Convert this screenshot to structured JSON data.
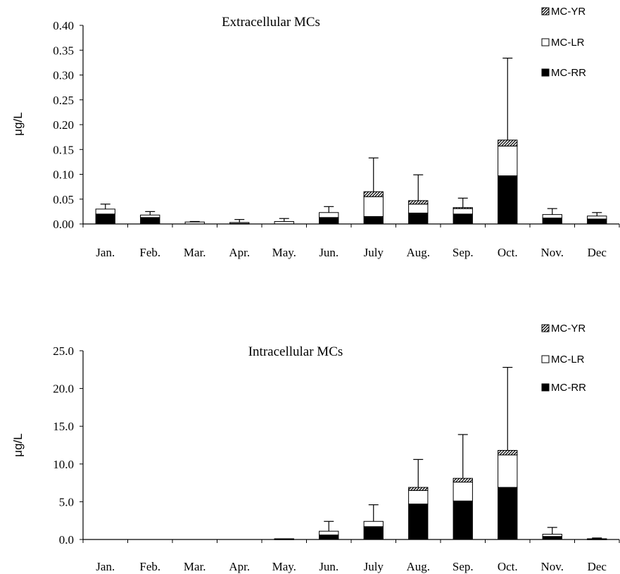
{
  "chart_data": [
    {
      "type": "bar",
      "stacked": true,
      "title": "Extracellular MCs",
      "ylabel": "μg/L",
      "ylim": [
        0,
        0.4
      ],
      "yticks": [
        "0.00",
        "0.05",
        "0.10",
        "0.15",
        "0.20",
        "0.25",
        "0.30",
        "0.35",
        "0.40"
      ],
      "categories": [
        "Jan.",
        "Feb.",
        "Mar.",
        "Apr.",
        "May.",
        "Jun.",
        "July",
        "Aug.",
        "Sep.",
        "Oct.",
        "Nov.",
        "Dec"
      ],
      "series": [
        {
          "name": "MC-RR",
          "fill": "#000000",
          "values": [
            0.02,
            0.013,
            0.0,
            0.001,
            0.0,
            0.013,
            0.015,
            0.022,
            0.02,
            0.097,
            0.012,
            0.01
          ]
        },
        {
          "name": "MC-LR",
          "fill": "#ffffff",
          "values": [
            0.01,
            0.005,
            0.004,
            0.002,
            0.005,
            0.01,
            0.04,
            0.018,
            0.011,
            0.06,
            0.007,
            0.006
          ]
        },
        {
          "name": "MC-YR",
          "fill": "hatch",
          "values": [
            0.0,
            0.0,
            0.0,
            0.0,
            0.0,
            0.0,
            0.01,
            0.007,
            0.002,
            0.012,
            0.0,
            0.0
          ]
        }
      ],
      "error_tops": [
        0.04,
        0.025,
        0.005,
        0.009,
        0.011,
        0.035,
        0.133,
        0.099,
        0.052,
        0.334,
        0.031,
        0.023
      ],
      "legend_position": "top-right"
    },
    {
      "type": "bar",
      "stacked": true,
      "title": "Intracellular MCs",
      "ylabel": "μg/L",
      "ylim": [
        0,
        25
      ],
      "yticks": [
        "0.0",
        "5.0",
        "10.0",
        "15.0",
        "20.0",
        "25.0"
      ],
      "categories": [
        "Jan.",
        "Feb.",
        "Mar.",
        "Apr.",
        "May.",
        "Jun.",
        "July",
        "Aug.",
        "Sep.",
        "Oct.",
        "Nov.",
        "Dec"
      ],
      "series": [
        {
          "name": "MC-RR",
          "fill": "#000000",
          "values": [
            0.0,
            0.0,
            0.0,
            0.0,
            0.05,
            0.6,
            1.7,
            4.7,
            5.1,
            6.9,
            0.4,
            0.05
          ]
        },
        {
          "name": "MC-LR",
          "fill": "#ffffff",
          "values": [
            0.0,
            0.0,
            0.0,
            0.0,
            0.05,
            0.5,
            0.7,
            1.8,
            2.5,
            4.3,
            0.3,
            0.05
          ]
        },
        {
          "name": "MC-YR",
          "fill": "hatch",
          "values": [
            0.0,
            0.0,
            0.0,
            0.0,
            0.0,
            0.0,
            0.0,
            0.4,
            0.5,
            0.6,
            0.0,
            0.0
          ]
        }
      ],
      "error_tops": [
        0.0,
        0.0,
        0.0,
        0.0,
        0.1,
        2.4,
        4.6,
        10.6,
        13.9,
        22.8,
        1.6,
        0.2
      ],
      "legend_position": "top-right"
    }
  ]
}
